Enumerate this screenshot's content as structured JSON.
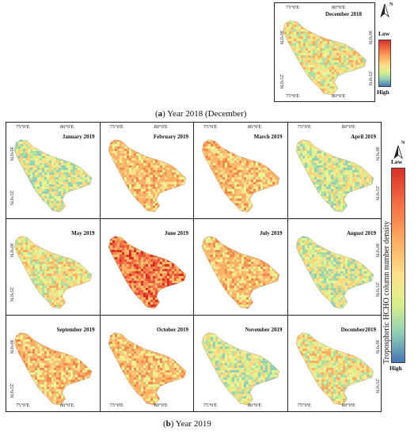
{
  "panel_a": {
    "title": "December 2018",
    "lon_top": [
      "75°0'E",
      "80°0'E"
    ],
    "lon_bottom": [
      "75°0'E",
      "80°0'E"
    ],
    "lat_left": [
      "30°0'N",
      "25°0'N"
    ],
    "lat_right": [
      "30°0'N",
      "25°0'N"
    ],
    "legend_low": "Low",
    "legend_high": "High",
    "north_label": "N",
    "caption_letter": "a",
    "caption_text": " Year 2018 (December)"
  },
  "panel_b": {
    "months": [
      {
        "title": "January 2019",
        "palette": "green"
      },
      {
        "title": "February 2019",
        "palette": "orange"
      },
      {
        "title": "March 2019",
        "palette": "orange"
      },
      {
        "title": "April 2019",
        "palette": "green"
      },
      {
        "title": "May 2019",
        "palette": "mixed"
      },
      {
        "title": "June 2019",
        "palette": "red"
      },
      {
        "title": "July 2019",
        "palette": "orange"
      },
      {
        "title": "August 2019",
        "palette": "green"
      },
      {
        "title": "September 2019",
        "palette": "orange"
      },
      {
        "title": "October 2019",
        "palette": "orange"
      },
      {
        "title": "November 2019",
        "palette": "green"
      },
      {
        "title": "December2019",
        "palette": "mixed"
      }
    ],
    "lon_labels": [
      "75°0'E",
      "80°0'E"
    ],
    "lat_labels": [
      "30°0'N",
      "25°0'N"
    ],
    "legend_low": "Low",
    "legend_high": "High",
    "north_label": "N",
    "legend_title": "Tropospheric HCHO column number density",
    "caption_letter": "b",
    "caption_text": " Year 2019"
  },
  "colors": {
    "high": "#4575b4",
    "mid": "#fee08b",
    "low": "#d73027"
  }
}
